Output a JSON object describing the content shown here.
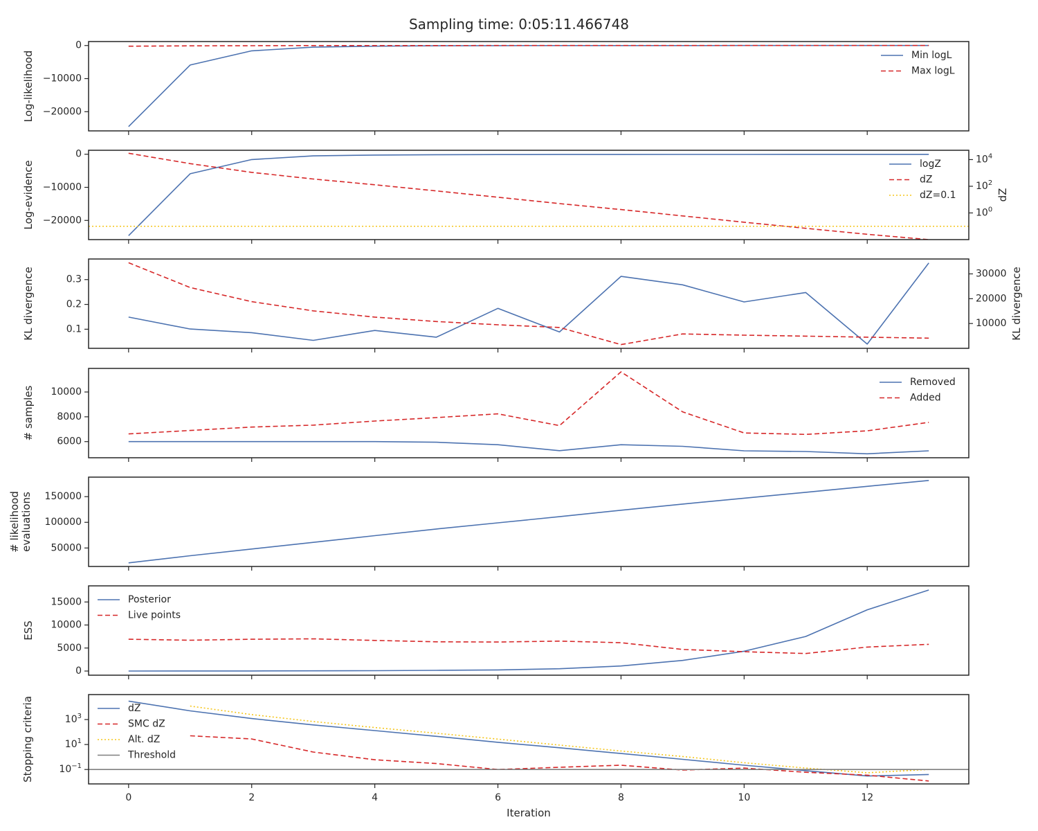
{
  "title": "Sampling time: 0:05:11.466748",
  "xlabel": "Iteration",
  "x_ticks": [
    0,
    2,
    4,
    6,
    8,
    10,
    12
  ],
  "xlim": [
    -0.65,
    13.65
  ],
  "colors": {
    "blue": "#4c72b0",
    "red": "#d62728",
    "yellow": "#f5c518",
    "gray": "#7f7f7f",
    "frame": "#262626"
  },
  "chart_data": [
    {
      "type": "line",
      "ylabel": "Log-likelihood",
      "ylim": [
        -25800,
        1200
      ],
      "yticks": [
        0,
        -10000,
        -20000
      ],
      "ytick_labels": [
        "0",
        "−10000",
        "−20000"
      ],
      "legend": "top-right",
      "series": [
        {
          "name": "Min logL",
          "style": "solid",
          "color": "#4c72b0",
          "x": [
            0,
            1,
            2,
            3,
            4,
            5,
            6,
            7,
            8,
            9,
            10,
            11,
            12,
            13
          ],
          "y": [
            -24500,
            -5900,
            -1600,
            -500,
            -200,
            -80,
            -40,
            -20,
            -10,
            -5,
            -3,
            -2,
            -1,
            -1
          ]
        },
        {
          "name": "Max logL",
          "style": "dashed",
          "color": "#d62728",
          "x": [
            0,
            1,
            2,
            3,
            4,
            5,
            6,
            7,
            8,
            9,
            10,
            11,
            12,
            13
          ],
          "y": [
            -200,
            -100,
            -50,
            -20,
            -10,
            -5,
            -3,
            -2,
            -1,
            -1,
            0,
            0,
            0,
            0
          ]
        }
      ]
    },
    {
      "type": "line",
      "ylabel": "Log-evidence",
      "ylim": [
        -25800,
        1200
      ],
      "yticks": [
        0,
        -10000,
        -20000
      ],
      "ytick_labels": [
        "0",
        "−10000",
        "−20000"
      ],
      "y2label": "dZ",
      "y2_log": true,
      "y2lim": [
        0.01,
        50000
      ],
      "y2ticks": [
        10000,
        100,
        1
      ],
      "y2tick_labels": [
        "10^4",
        "10^2",
        "10^0"
      ],
      "legend": "top-right",
      "series": [
        {
          "name": "logZ",
          "style": "solid",
          "color": "#4c72b0",
          "axis": "left",
          "x": [
            0,
            1,
            2,
            3,
            4,
            5,
            6,
            7,
            8,
            9,
            10,
            11,
            12,
            13
          ],
          "y": [
            -24600,
            -5900,
            -1600,
            -500,
            -250,
            -150,
            -100,
            -80,
            -70,
            -60,
            -50,
            -45,
            -40,
            -40
          ]
        },
        {
          "name": "dZ",
          "style": "dashed",
          "color": "#d62728",
          "axis": "right",
          "x": [
            0,
            1,
            2,
            3,
            4,
            5,
            6,
            7,
            8,
            9,
            10,
            11,
            12,
            13
          ],
          "y": [
            30000,
            5000,
            1100,
            350,
            130,
            45,
            15,
            5,
            1.8,
            0.6,
            0.2,
            0.07,
            0.025,
            0.01
          ]
        },
        {
          "name": "dZ=0.1",
          "style": "dotted",
          "color": "#f5c518",
          "axis": "right",
          "hline": 0.1
        }
      ]
    },
    {
      "type": "line",
      "ylabel": "KL divergence",
      "ylim": [
        0.023,
        0.383
      ],
      "yticks": [
        0.1,
        0.2,
        0.3
      ],
      "ytick_labels": [
        "0.1",
        "0.2",
        "0.3"
      ],
      "y2label": "KL divergence",
      "y2lim": [
        0,
        36000
      ],
      "y2ticks": [
        10000,
        20000,
        30000
      ],
      "y2tick_labels": [
        "10000",
        "20000",
        "30000"
      ],
      "series": [
        {
          "style": "solid",
          "color": "#4c72b0",
          "axis": "left",
          "x": [
            0,
            1,
            2,
            3,
            4,
            5,
            6,
            7,
            8,
            9,
            10,
            11,
            12,
            13
          ],
          "y": [
            0.149,
            0.101,
            0.086,
            0.055,
            0.095,
            0.068,
            0.184,
            0.089,
            0.313,
            0.279,
            0.21,
            0.248,
            0.04,
            0.367
          ]
        },
        {
          "style": "dashed",
          "color": "#d62728",
          "axis": "right",
          "x": [
            0,
            1,
            2,
            3,
            4,
            5,
            6,
            7,
            8,
            9,
            10,
            11,
            12,
            13
          ],
          "y": [
            34500,
            24500,
            18800,
            15100,
            12600,
            10800,
            9500,
            8400,
            1500,
            5800,
            5300,
            4900,
            4500,
            4100
          ]
        }
      ]
    },
    {
      "type": "line",
      "ylabel": "# samples",
      "ylim": [
        4700,
        11900
      ],
      "yticks": [
        6000,
        8000,
        10000
      ],
      "ytick_labels": [
        "6000",
        "8000",
        "10000"
      ],
      "legend": "top-right",
      "series": [
        {
          "name": "Removed",
          "style": "solid",
          "color": "#4c72b0",
          "x": [
            0,
            1,
            2,
            3,
            4,
            5,
            6,
            7,
            8,
            9,
            10,
            11,
            12,
            13
          ],
          "y": [
            6000,
            6000,
            6000,
            6000,
            6000,
            5950,
            5750,
            5270,
            5750,
            5620,
            5260,
            5200,
            5020,
            5260
          ]
        },
        {
          "name": "Added",
          "style": "dashed",
          "color": "#d62728",
          "x": [
            0,
            1,
            2,
            3,
            4,
            5,
            6,
            7,
            8,
            9,
            10,
            11,
            12,
            13
          ],
          "y": [
            6620,
            6900,
            7170,
            7330,
            7660,
            7940,
            8240,
            7290,
            11620,
            8400,
            6700,
            6580,
            6870,
            7550
          ]
        }
      ]
    },
    {
      "type": "line",
      "ylabel": "# likelihood evaluations",
      "ylabel_lines": [
        "# likelihood",
        "evaluations"
      ],
      "ylim": [
        14000,
        188000
      ],
      "yticks": [
        50000,
        100000,
        150000
      ],
      "ytick_labels": [
        "50000",
        "100000",
        "150000"
      ],
      "series": [
        {
          "style": "solid",
          "color": "#4c72b0",
          "x": [
            0,
            1,
            2,
            3,
            4,
            5,
            6,
            7,
            8,
            9,
            10,
            11,
            12,
            13
          ],
          "y": [
            21000,
            34900,
            48000,
            61000,
            74000,
            87000,
            99000,
            111000,
            123500,
            135500,
            147000,
            158500,
            170000,
            181500
          ]
        }
      ]
    },
    {
      "type": "line",
      "ylabel": "ESS",
      "ylim": [
        -900,
        18500
      ],
      "yticks": [
        0,
        5000,
        10000,
        15000
      ],
      "ytick_labels": [
        "0",
        "5000",
        "10000",
        "15000"
      ],
      "legend": "top-left",
      "series": [
        {
          "name": "Posterior",
          "style": "solid",
          "color": "#4c72b0",
          "x": [
            0,
            1,
            2,
            3,
            4,
            5,
            6,
            7,
            8,
            9,
            10,
            11,
            12,
            13
          ],
          "y": [
            0,
            10,
            20,
            40,
            80,
            150,
            250,
            500,
            1100,
            2300,
            4300,
            7500,
            13300,
            17600
          ]
        },
        {
          "name": "Live points",
          "style": "dashed",
          "color": "#d62728",
          "x": [
            0,
            1,
            2,
            3,
            4,
            5,
            6,
            7,
            8,
            9,
            10,
            11,
            12,
            13
          ],
          "y": [
            6900,
            6700,
            6900,
            7000,
            6650,
            6350,
            6300,
            6500,
            6150,
            4700,
            4200,
            3800,
            5200,
            5800
          ]
        }
      ]
    },
    {
      "type": "line",
      "ylabel": "Stopping criteria",
      "y_log": true,
      "ylim": [
        0.007,
        100000
      ],
      "yticks": [
        1000,
        10,
        0.1
      ],
      "ytick_labels": [
        "10^3",
        "10^1",
        "10^-1"
      ],
      "legend": "top-left",
      "series": [
        {
          "name": "dZ",
          "style": "solid",
          "color": "#4c72b0",
          "x": [
            0,
            1,
            2,
            3,
            4,
            5,
            6,
            7,
            8,
            9,
            10,
            11,
            12,
            13
          ],
          "y": [
            30000,
            5000,
            1200,
            370,
            130,
            45,
            15,
            5.5,
            1.9,
            0.65,
            0.22,
            0.08,
            0.03,
            0.04
          ]
        },
        {
          "name": "SMC dZ",
          "style": "dashed",
          "color": "#d62728",
          "x": [
            0,
            1,
            2,
            3,
            4,
            5,
            6,
            7,
            8,
            9,
            10,
            11,
            12,
            13
          ],
          "y": [
            null,
            50,
            28,
            2.5,
            0.6,
            0.3,
            0.1,
            0.15,
            0.22,
            0.09,
            0.13,
            0.06,
            0.035,
            0.012
          ]
        },
        {
          "name": "Alt. dZ",
          "style": "dotted",
          "color": "#f5c518",
          "x": [
            1,
            2,
            3,
            4,
            5,
            6,
            7,
            8,
            9,
            10,
            11,
            12,
            13
          ],
          "y": [
            12000,
            2500,
            700,
            230,
            80,
            27,
            9,
            3,
            1.1,
            0.35,
            0.13,
            0.055,
            0.1
          ]
        },
        {
          "name": "Threshold",
          "style": "solid",
          "color": "#7f7f7f",
          "hline": 0.1
        }
      ]
    }
  ]
}
